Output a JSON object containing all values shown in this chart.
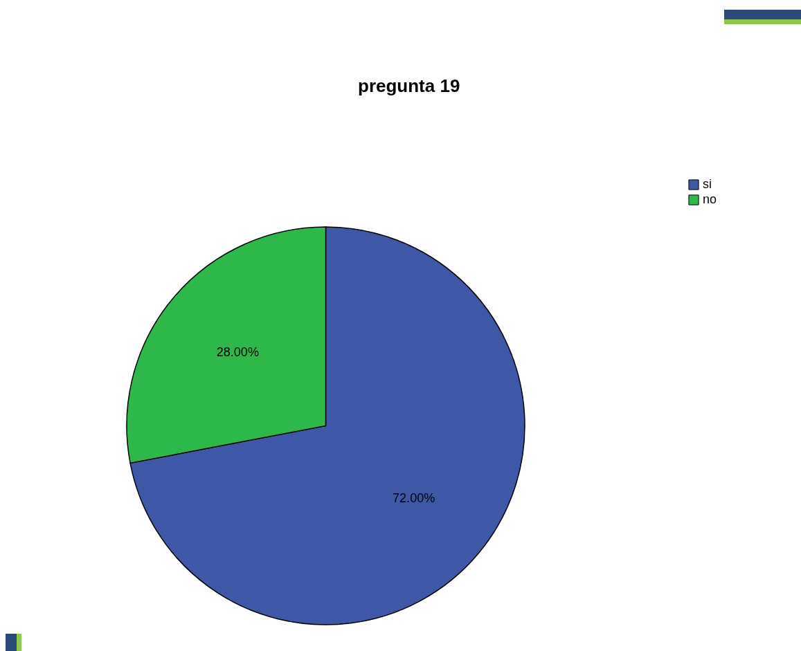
{
  "chart_data": {
    "type": "pie",
    "title": "pregunta 19",
    "categories": [
      "si",
      "no"
    ],
    "values": [
      72,
      28
    ],
    "colors": [
      "#3e58a8",
      "#2eb84a"
    ],
    "value_labels": [
      "72.00%",
      "28.00%"
    ],
    "legend": "top right"
  }
}
